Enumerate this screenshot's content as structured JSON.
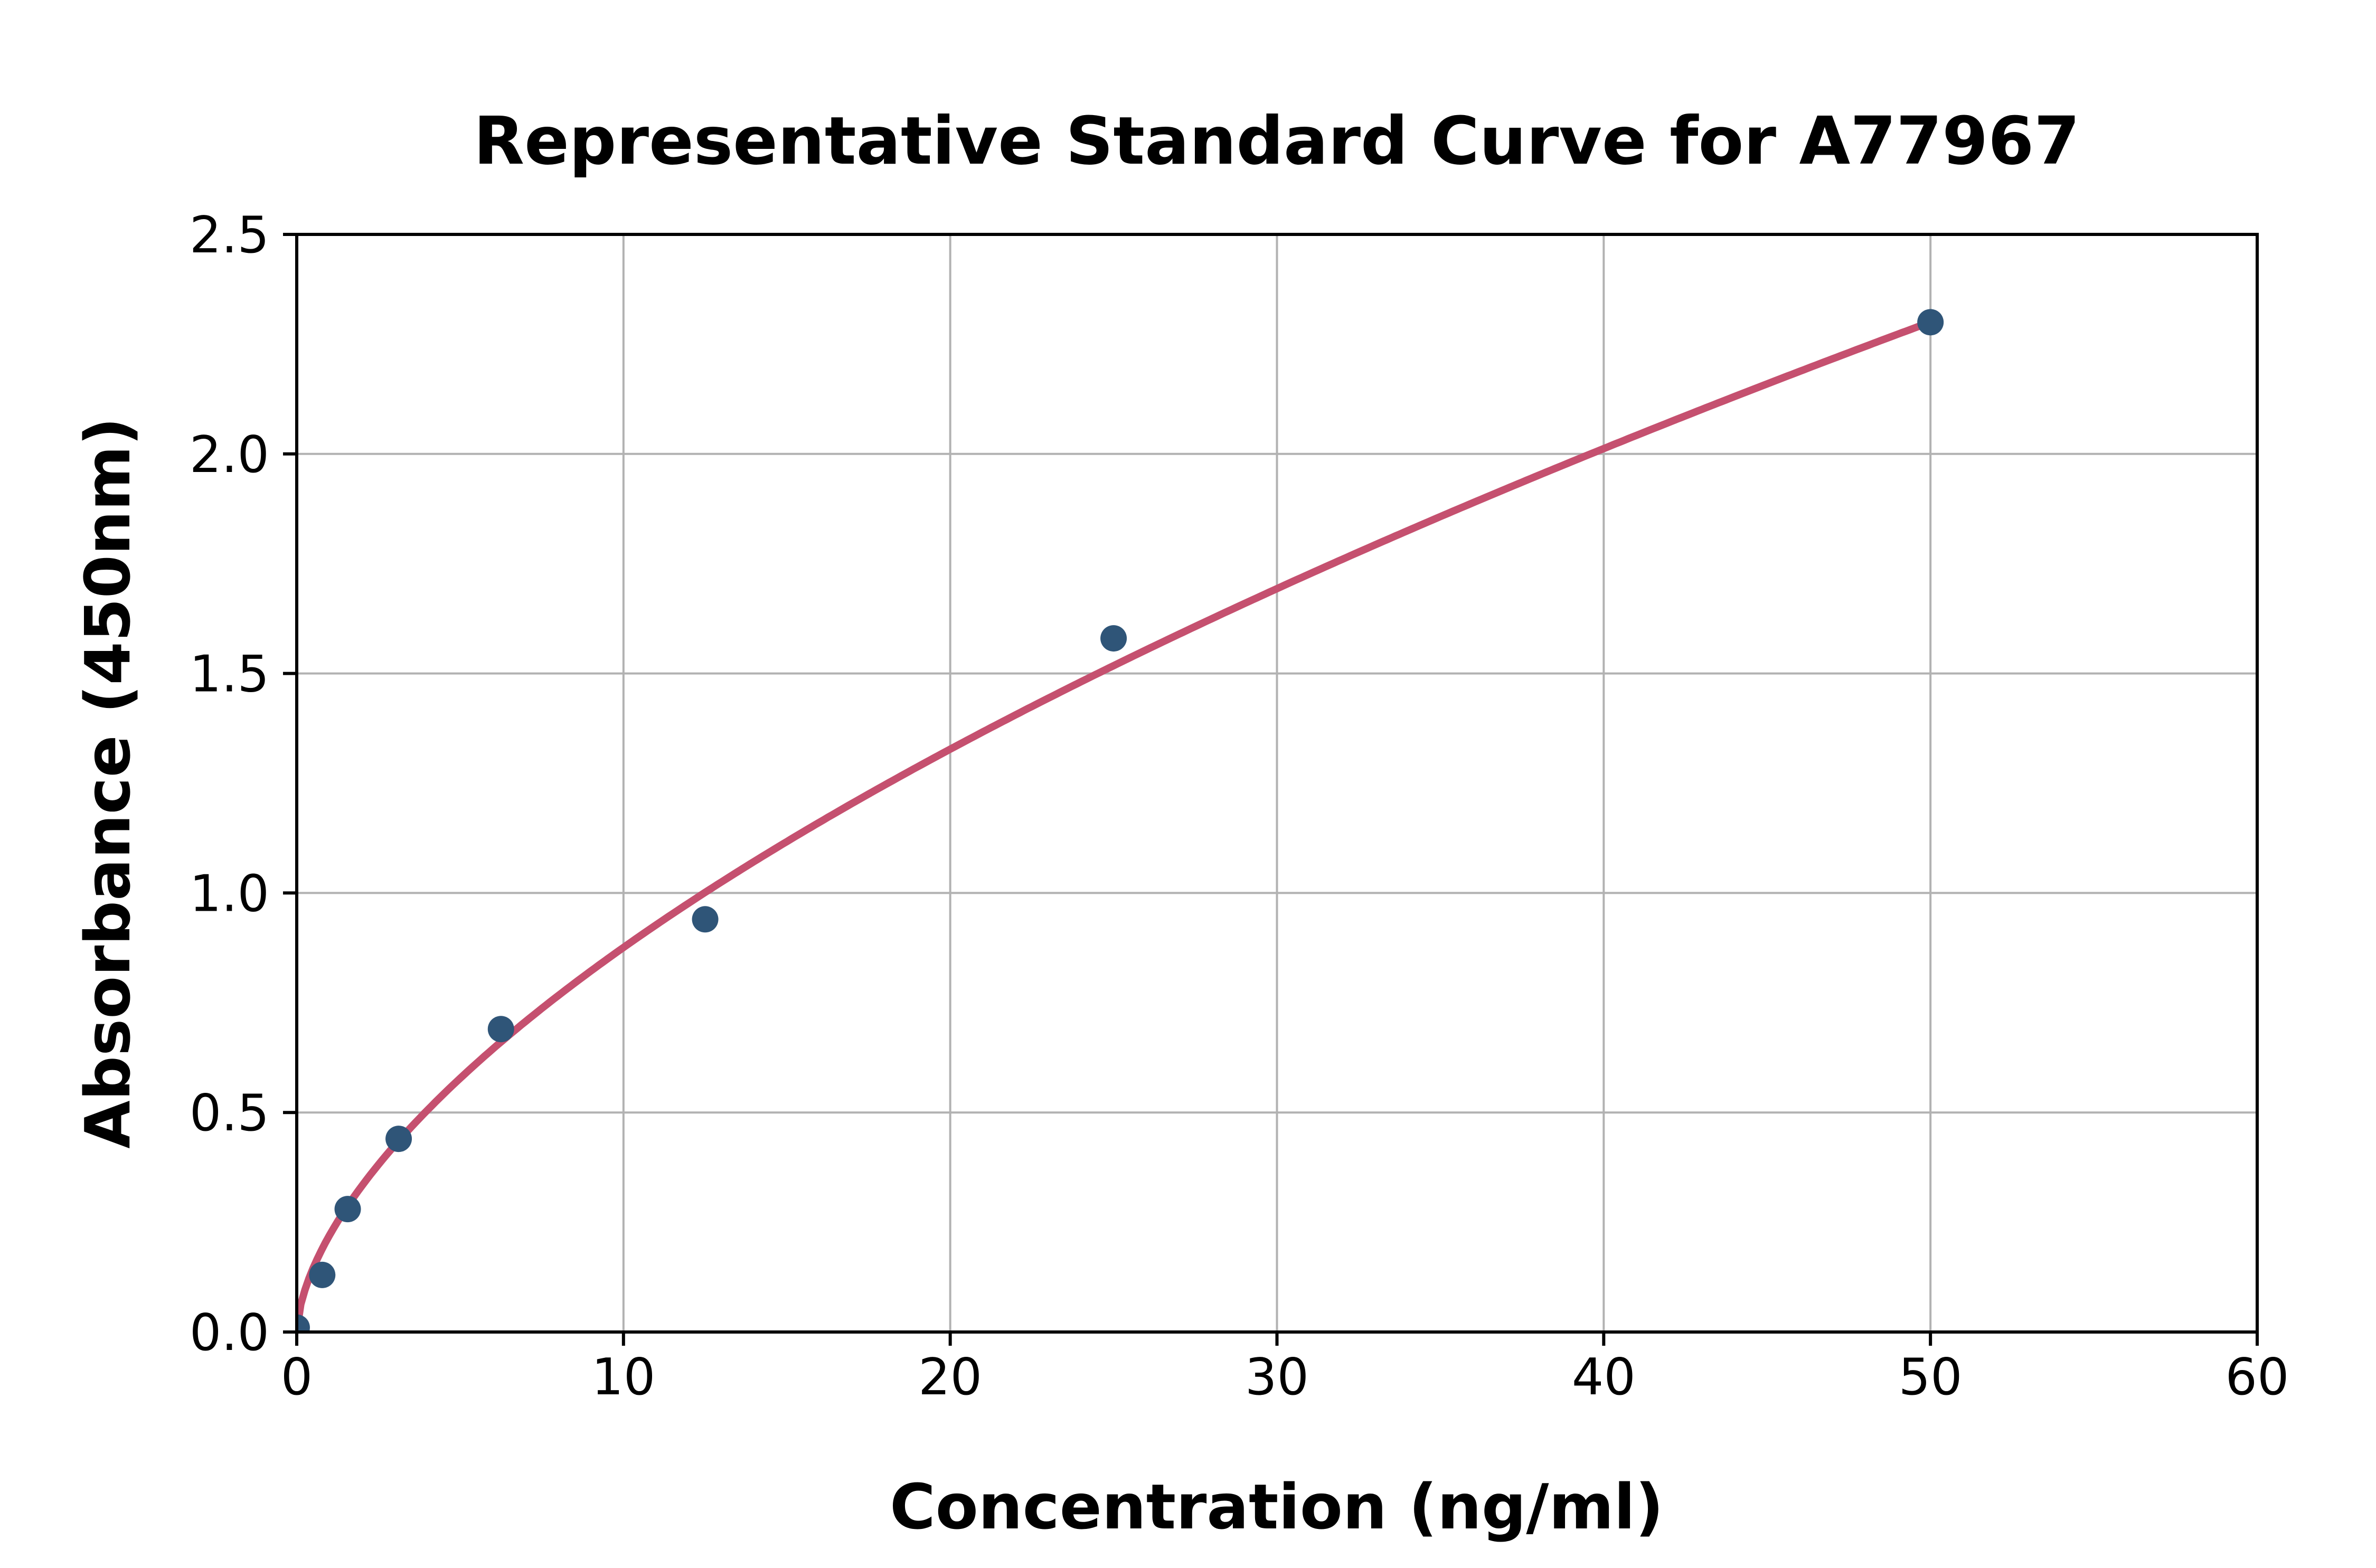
{
  "chart_data": {
    "type": "scatter",
    "title": "Representative Standard Curve for A77967",
    "xlabel": "Concentration (ng/ml)",
    "ylabel": "Absorbance (450nm)",
    "xlim": [
      0,
      60
    ],
    "ylim": [
      0,
      2.5
    ],
    "x_ticks": [
      0,
      10,
      20,
      30,
      40,
      50,
      60
    ],
    "x_tick_labels": [
      "0",
      "10",
      "20",
      "30",
      "40",
      "50",
      "60"
    ],
    "y_ticks": [
      0,
      0.5,
      1.0,
      1.5,
      2.0,
      2.5
    ],
    "y_tick_labels": [
      "0.0",
      "0.5",
      "1.0",
      "1.5",
      "2.0",
      "2.5"
    ],
    "grid": true,
    "legend_position": "none",
    "points": [
      {
        "x": 0,
        "y": 0.01
      },
      {
        "x": 0.78,
        "y": 0.13
      },
      {
        "x": 1.56,
        "y": 0.28
      },
      {
        "x": 3.12,
        "y": 0.44
      },
      {
        "x": 6.25,
        "y": 0.69
      },
      {
        "x": 12.5,
        "y": 0.94
      },
      {
        "x": 25,
        "y": 1.58
      },
      {
        "x": 50,
        "y": 2.3
      }
    ],
    "fit_curve": {
      "type": "power",
      "equation": "y = a * x^b",
      "a": 0.22,
      "b": 0.6,
      "x_start": 0,
      "x_end": 50
    },
    "colors": {
      "marker": "#2f5578",
      "curve": "#c5506f",
      "grid": "#b2b2b2",
      "axes": "#000000",
      "background": "#ffffff"
    }
  }
}
